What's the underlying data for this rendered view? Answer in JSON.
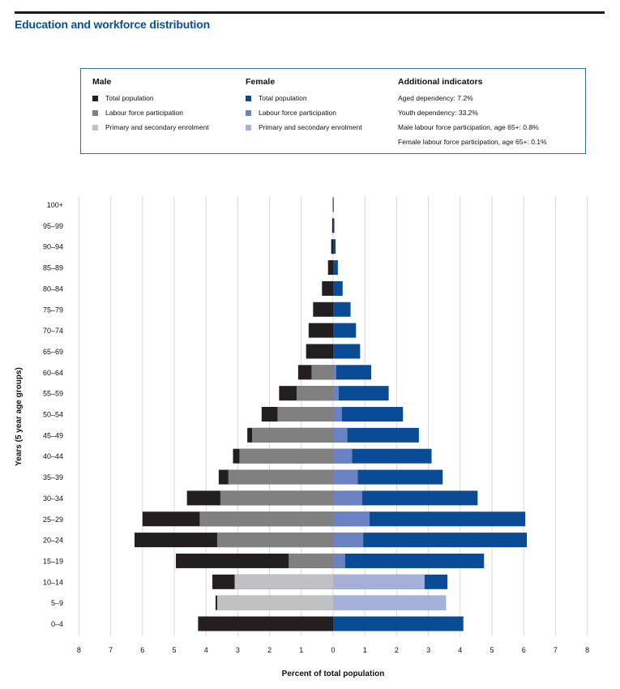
{
  "header": {
    "title": "Education and workforce distribution"
  },
  "legend": {
    "male": {
      "heading": "Male",
      "items": [
        {
          "label": "Total population",
          "color": "#231f20"
        },
        {
          "label": "Labour force participation",
          "color": "#808080"
        },
        {
          "label": "Primary and secondary enrolment",
          "color": "#c0c1c3"
        }
      ]
    },
    "female": {
      "heading": "Female",
      "items": [
        {
          "label": "Total population",
          "color": "#0a4b95"
        },
        {
          "label": "Labour force participation",
          "color": "#6b82c2"
        },
        {
          "label": "Primary and secondary enrolment",
          "color": "#a6b1da"
        }
      ]
    },
    "indicators": {
      "heading": "Additional indicators",
      "items": [
        "Aged dependency: 7.2%",
        "Youth dependency: 33.2%",
        "Male labour force participation, age 65+: 0.8%",
        "Female labour force participation, age 65+: 0.1%"
      ]
    }
  },
  "chart_data": {
    "type": "bar",
    "orientation": "horizontal-population-pyramid",
    "ylabel": "Years (5 year age groups)",
    "xlabel": "Percent of total population",
    "xlim": [
      -8,
      8
    ],
    "xticks": [
      -8,
      -7,
      -6,
      -5,
      -4,
      -3,
      -2,
      -1,
      0,
      1,
      2,
      3,
      4,
      5,
      6,
      7,
      8
    ],
    "xtick_labels": [
      "8",
      "7",
      "6",
      "5",
      "4",
      "3",
      "2",
      "1",
      "0",
      "1",
      "2",
      "3",
      "4",
      "5",
      "6",
      "7",
      "8"
    ],
    "grid": "vertical",
    "categories": [
      "100+",
      "95–99",
      "90–94",
      "85–89",
      "80–84",
      "75–79",
      "70–74",
      "65–69",
      "60–64",
      "55–59",
      "50–54",
      "45–49",
      "40–44",
      "35–39",
      "30–34",
      "25–29",
      "20–24",
      "15–19",
      "10–14",
      "5–9",
      "0–4"
    ],
    "colors": {
      "male_total": "#231f20",
      "male_labour": "#808080",
      "male_enrol": "#c0c1c3",
      "female_total": "#0a4b95",
      "female_labour": "#6b82c2",
      "female_enrol": "#a6b1da"
    },
    "series": [
      {
        "name": "Male total population",
        "side": "male",
        "values": [
          0.01,
          0.03,
          0.06,
          0.16,
          0.35,
          0.63,
          0.77,
          0.85,
          1.1,
          1.7,
          2.25,
          2.7,
          3.15,
          3.6,
          4.6,
          6.0,
          6.25,
          4.95,
          3.8,
          3.7,
          4.25
        ]
      },
      {
        "name": "Male labour force participation",
        "side": "male",
        "values": [
          0,
          0,
          0,
          0,
          0,
          0,
          0,
          0,
          0.68,
          1.15,
          1.75,
          2.55,
          2.95,
          3.3,
          3.55,
          4.2,
          3.65,
          1.4,
          0,
          0,
          0
        ]
      },
      {
        "name": "Male primary and secondary enrolment",
        "side": "male",
        "values": [
          0,
          0,
          0,
          0,
          0,
          0,
          0,
          0,
          0,
          0,
          0,
          0,
          0,
          0,
          0,
          0,
          0,
          0,
          3.1,
          3.65,
          0
        ]
      },
      {
        "name": "Female total population",
        "side": "female",
        "values": [
          0.02,
          0.04,
          0.08,
          0.15,
          0.3,
          0.55,
          0.72,
          0.85,
          1.2,
          1.75,
          2.2,
          2.7,
          3.1,
          3.45,
          4.55,
          6.05,
          6.1,
          4.75,
          3.6,
          3.55,
          4.1
        ]
      },
      {
        "name": "Female labour force participation",
        "side": "female",
        "values": [
          0,
          0,
          0,
          0,
          0,
          0,
          0,
          0,
          0.1,
          0.18,
          0.28,
          0.45,
          0.6,
          0.78,
          0.92,
          1.15,
          0.95,
          0.38,
          0,
          0,
          0
        ]
      },
      {
        "name": "Female primary and secondary enrolment",
        "side": "female",
        "values": [
          0,
          0,
          0,
          0,
          0,
          0,
          0,
          0,
          0,
          0,
          0,
          0,
          0,
          0,
          0,
          0,
          0,
          0,
          2.88,
          3.55,
          0
        ]
      }
    ]
  }
}
